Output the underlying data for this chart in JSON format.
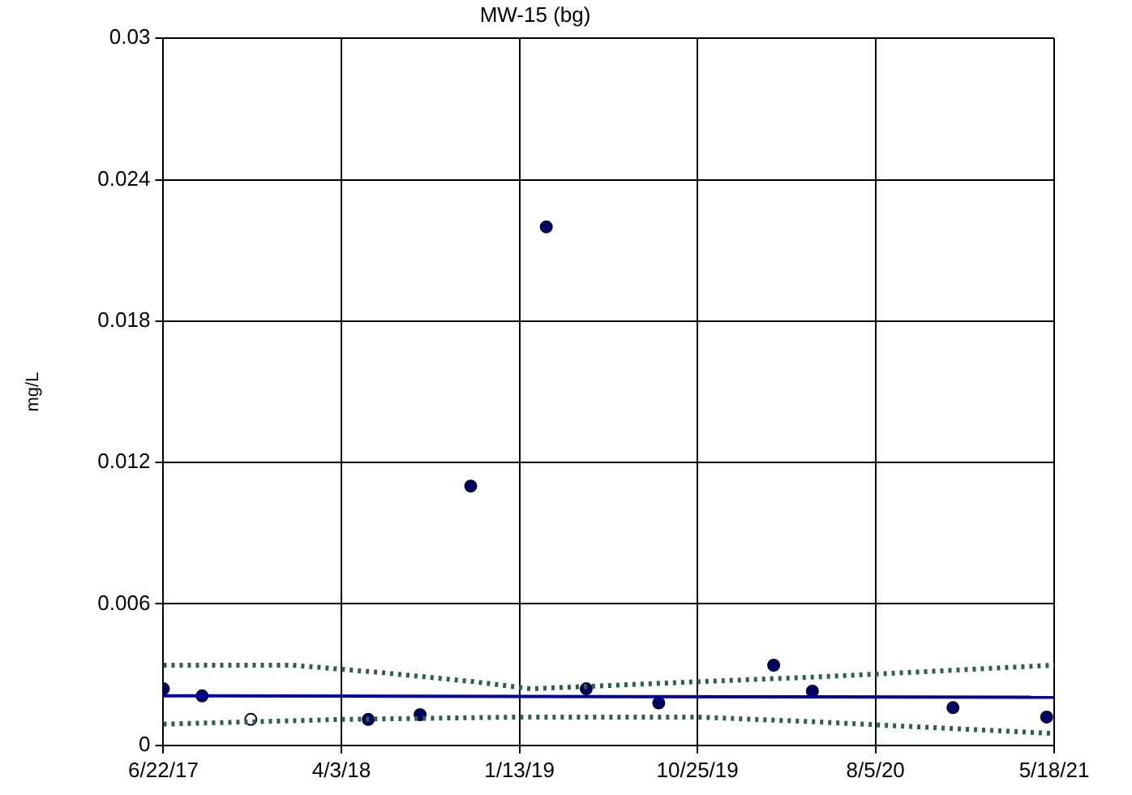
{
  "chart_data": {
    "type": "scatter",
    "title": "MW-15 (bg)",
    "ylabel": "mg/L",
    "xlim": [
      "2017-06-22",
      "2021-05-18"
    ],
    "xticks": [
      {
        "value": "2017-06-22",
        "label": "6/22/17"
      },
      {
        "value": "2018-04-03",
        "label": "4/3/18"
      },
      {
        "value": "2019-01-13",
        "label": "1/13/19"
      },
      {
        "value": "2019-10-25",
        "label": "10/25/19"
      },
      {
        "value": "2020-08-05",
        "label": "8/5/20"
      },
      {
        "value": "2021-05-18",
        "label": "5/18/21"
      }
    ],
    "ylim": [
      0,
      0.03
    ],
    "yticks": [
      0,
      0.006,
      0.012,
      0.018,
      0.024,
      0.03
    ],
    "grid": true,
    "legend": false,
    "marker": "circle",
    "series": [
      {
        "color": "#000066",
        "x": [
          "2017-06-22",
          "2017-08-23",
          "2018-05-16",
          "2018-08-07",
          "2018-10-27",
          "2019-02-25",
          "2019-04-30",
          "2019-08-24",
          "2020-02-24",
          "2020-04-26",
          "2020-12-07",
          "2021-05-06"
        ],
        "values": [
          0.0024,
          0.0021,
          0.0011,
          0.0013,
          0.011,
          0.022,
          0.0024,
          0.0018,
          0.0034,
          0.0023,
          0.0016,
          0.0012
        ]
      },
      {
        "color": "#ffffff",
        "x": [
          "2017-11-09"
        ],
        "values": [
          0.0011
        ]
      },
      {
        "type": "line",
        "color": "#0000a0",
        "line_style": "solid",
        "marker": "none",
        "x": [
          "2017-06-22",
          "2021-05-18"
        ],
        "values": [
          0.0021,
          0.00204
        ]
      },
      {
        "type": "line",
        "color": "#2f5f4f",
        "line_style": "dotted",
        "marker": "none",
        "x": [
          "2017-06-22",
          "2018-01-15",
          "2018-06-01",
          "2018-11-01",
          "2019-02-01",
          "2019-05-01",
          "2019-10-25",
          "2020-05-01",
          "2020-10-01",
          "2021-05-18"
        ],
        "values": [
          0.0034,
          0.0034,
          0.0031,
          0.0027,
          0.0024,
          0.0025,
          0.0027,
          0.0029,
          0.0031,
          0.0034
        ]
      },
      {
        "type": "line",
        "color": "#2f5f4f",
        "line_style": "dotted",
        "marker": "none",
        "x": [
          "2017-06-22",
          "2018-04-03",
          "2019-01-13",
          "2019-10-25",
          "2020-05-01",
          "2020-10-01",
          "2021-05-18"
        ],
        "values": [
          0.0009,
          0.0011,
          0.0012,
          0.0012,
          0.001,
          0.0008,
          0.0005
        ]
      }
    ]
  }
}
